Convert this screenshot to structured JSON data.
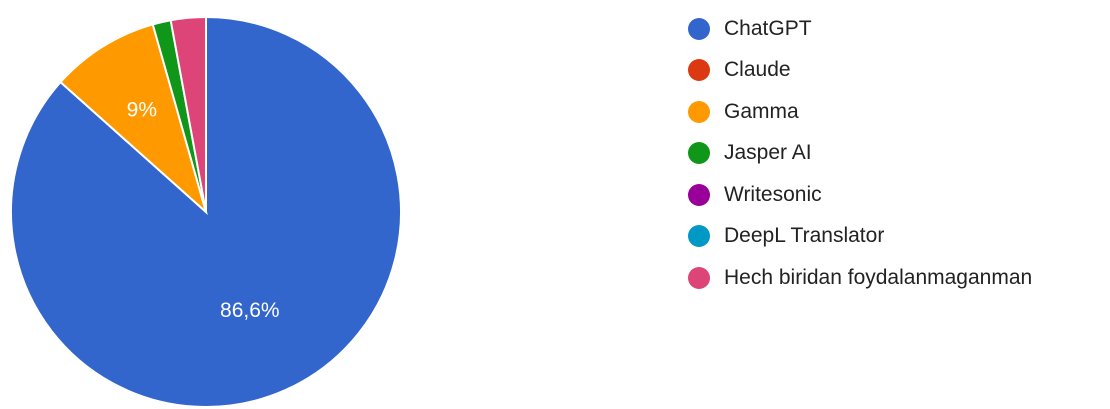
{
  "chart_data": {
    "type": "pie",
    "title": "",
    "start_angle_deg": 90,
    "direction": "clockwise",
    "slices": [
      {
        "label": "ChatGPT",
        "value": 86.6,
        "color": "#3366cc",
        "data_label": "86,6%"
      },
      {
        "label": "Claude",
        "value": 0,
        "color": "#dc3912",
        "data_label": ""
      },
      {
        "label": "Gamma",
        "value": 9.0,
        "color": "#ff9900",
        "data_label": "9%"
      },
      {
        "label": "Jasper AI",
        "value": 1.5,
        "color": "#109618",
        "data_label": ""
      },
      {
        "label": "Writesonic",
        "value": 0,
        "color": "#990099",
        "data_label": ""
      },
      {
        "label": "DeepL Translator",
        "value": 0,
        "color": "#0099c6",
        "data_label": ""
      },
      {
        "label": "Hech biridan foydalanmaganman",
        "value": 2.9,
        "color": "#dd4477",
        "data_label": ""
      }
    ],
    "legend_position": "right"
  }
}
